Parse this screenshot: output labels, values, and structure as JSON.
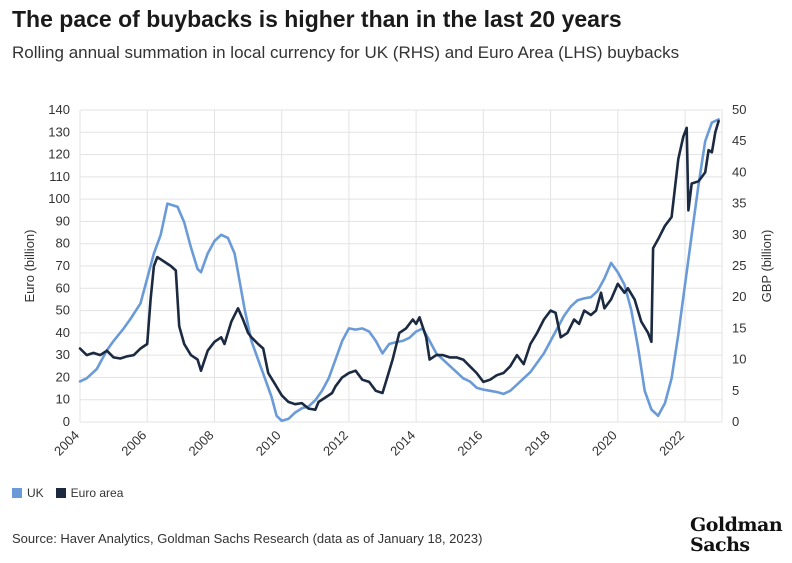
{
  "title": "The pace of buybacks is higher than in the last 20 years",
  "subtitle": "Rolling annual summation in local currency for UK (RHS) and Euro Area (LHS) buybacks",
  "source": "Source: Haver Analytics, Goldman Sachs Research (data as of January 18, 2023)",
  "logo": {
    "line1": "Goldman",
    "line2": "Sachs"
  },
  "legend": [
    {
      "label": "UK",
      "color": "#6a9bd8"
    },
    {
      "label": "Euro area",
      "color": "#1b2a41"
    }
  ],
  "chart_data": {
    "type": "line",
    "title": "The pace of buybacks is higher than in the last 20 years",
    "subtitle": "Rolling annual summation in local currency for UK (RHS) and Euro Area (LHS) buybacks",
    "ylabel_left": "Euro (billion)",
    "ylabel_right": "GBP (billion)",
    "ylim_left": [
      0,
      140
    ],
    "ylim_right": [
      0,
      50
    ],
    "xlim": [
      2004,
      2023.1
    ],
    "x_ticks": [
      "2004",
      "2006",
      "2008",
      "2010",
      "2012",
      "2014",
      "2016",
      "2018",
      "2020",
      "2022"
    ],
    "y_ticks_left": [
      "0",
      "10",
      "20",
      "30",
      "40",
      "50",
      "60",
      "70",
      "80",
      "90",
      "100",
      "110",
      "120",
      "130",
      "140"
    ],
    "y_ticks_right": [
      "0",
      "5",
      "10",
      "15",
      "20",
      "25",
      "30",
      "35",
      "40",
      "45",
      "50"
    ],
    "grid": true,
    "legend_position": "bottom-left",
    "colors": {
      "uk": "#6a9bd8",
      "euro": "#1b2a41"
    },
    "series": [
      {
        "name": "UK",
        "axis": "right",
        "points": [
          [
            2004,
            6.5
          ],
          [
            2004.2,
            7
          ],
          [
            2004.5,
            8.5
          ],
          [
            2004.8,
            11.5
          ],
          [
            2005,
            13
          ],
          [
            2005.3,
            15
          ],
          [
            2005.5,
            16.5
          ],
          [
            2005.8,
            19
          ],
          [
            2006,
            23
          ],
          [
            2006.2,
            27
          ],
          [
            2006.4,
            30
          ],
          [
            2006.6,
            35
          ],
          [
            2006.9,
            34.5
          ],
          [
            2007.1,
            32
          ],
          [
            2007.3,
            28
          ],
          [
            2007.5,
            24.5
          ],
          [
            2007.6,
            24
          ],
          [
            2007.8,
            27
          ],
          [
            2008,
            29
          ],
          [
            2008.2,
            30
          ],
          [
            2008.4,
            29.5
          ],
          [
            2008.6,
            27
          ],
          [
            2008.7,
            24
          ],
          [
            2008.9,
            18
          ],
          [
            2009.1,
            13
          ],
          [
            2009.3,
            10
          ],
          [
            2009.5,
            7
          ],
          [
            2009.7,
            4
          ],
          [
            2009.85,
            1
          ],
          [
            2010,
            0.2
          ],
          [
            2010.2,
            0.5
          ],
          [
            2010.4,
            1.5
          ],
          [
            2010.6,
            2.2
          ],
          [
            2010.8,
            2.5
          ],
          [
            2011,
            3.5
          ],
          [
            2011.2,
            5
          ],
          [
            2011.4,
            7
          ],
          [
            2011.6,
            10
          ],
          [
            2011.8,
            13
          ],
          [
            2012,
            15
          ],
          [
            2012.2,
            14.8
          ],
          [
            2012.4,
            15
          ],
          [
            2012.6,
            14.5
          ],
          [
            2012.8,
            13
          ],
          [
            2013,
            11
          ],
          [
            2013.2,
            12.5
          ],
          [
            2013.4,
            12.8
          ],
          [
            2013.6,
            13
          ],
          [
            2013.8,
            13.5
          ],
          [
            2014,
            14.5
          ],
          [
            2014.2,
            15
          ],
          [
            2014.4,
            13
          ],
          [
            2014.6,
            11
          ],
          [
            2014.8,
            10
          ],
          [
            2015,
            9
          ],
          [
            2015.2,
            8
          ],
          [
            2015.4,
            7
          ],
          [
            2015.6,
            6.5
          ],
          [
            2015.8,
            5.5
          ],
          [
            2016,
            5.2
          ],
          [
            2016.2,
            5
          ],
          [
            2016.4,
            4.8
          ],
          [
            2016.6,
            4.5
          ],
          [
            2016.8,
            5
          ],
          [
            2017,
            6
          ],
          [
            2017.2,
            7
          ],
          [
            2017.4,
            8
          ],
          [
            2017.6,
            9.5
          ],
          [
            2017.8,
            11
          ],
          [
            2018,
            13
          ],
          [
            2018.2,
            15
          ],
          [
            2018.4,
            17
          ],
          [
            2018.6,
            18.5
          ],
          [
            2018.8,
            19.5
          ],
          [
            2019,
            19.8
          ],
          [
            2019.2,
            20
          ],
          [
            2019.4,
            21
          ],
          [
            2019.6,
            23
          ],
          [
            2019.8,
            25.5
          ],
          [
            2020,
            24
          ],
          [
            2020.2,
            22
          ],
          [
            2020.4,
            18
          ],
          [
            2020.6,
            12
          ],
          [
            2020.8,
            5
          ],
          [
            2021,
            2
          ],
          [
            2021.2,
            1
          ],
          [
            2021.4,
            3
          ],
          [
            2021.6,
            7
          ],
          [
            2021.8,
            14
          ],
          [
            2022,
            22
          ],
          [
            2022.2,
            30
          ],
          [
            2022.4,
            38
          ],
          [
            2022.6,
            45
          ],
          [
            2022.8,
            48
          ],
          [
            2023,
            48.5
          ]
        ]
      },
      {
        "name": "Euro area",
        "axis": "left",
        "points": [
          [
            2004,
            33
          ],
          [
            2004.2,
            30
          ],
          [
            2004.4,
            31
          ],
          [
            2004.6,
            30
          ],
          [
            2004.8,
            32
          ],
          [
            2005,
            29
          ],
          [
            2005.2,
            28.5
          ],
          [
            2005.4,
            29.5
          ],
          [
            2005.6,
            30
          ],
          [
            2005.8,
            33
          ],
          [
            2006,
            35
          ],
          [
            2006.1,
            55
          ],
          [
            2006.2,
            70
          ],
          [
            2006.3,
            74
          ],
          [
            2006.5,
            72
          ],
          [
            2006.7,
            70
          ],
          [
            2006.85,
            68
          ],
          [
            2006.95,
            43
          ],
          [
            2007.1,
            35
          ],
          [
            2007.3,
            30
          ],
          [
            2007.5,
            28
          ],
          [
            2007.6,
            23
          ],
          [
            2007.8,
            32
          ],
          [
            2008,
            36
          ],
          [
            2008.2,
            38
          ],
          [
            2008.3,
            35
          ],
          [
            2008.5,
            45
          ],
          [
            2008.7,
            51
          ],
          [
            2008.85,
            46
          ],
          [
            2009,
            40
          ],
          [
            2009.1,
            38
          ],
          [
            2009.3,
            35
          ],
          [
            2009.45,
            33
          ],
          [
            2009.6,
            22
          ],
          [
            2009.8,
            17
          ],
          [
            2010,
            12
          ],
          [
            2010.2,
            9
          ],
          [
            2010.4,
            8
          ],
          [
            2010.6,
            8.5
          ],
          [
            2010.8,
            6
          ],
          [
            2011,
            5.5
          ],
          [
            2011.1,
            9
          ],
          [
            2011.3,
            11
          ],
          [
            2011.5,
            13
          ],
          [
            2011.6,
            16
          ],
          [
            2011.8,
            20
          ],
          [
            2012,
            22
          ],
          [
            2012.2,
            23
          ],
          [
            2012.4,
            19
          ],
          [
            2012.6,
            18
          ],
          [
            2012.8,
            14
          ],
          [
            2013,
            13
          ],
          [
            2013.1,
            18
          ],
          [
            2013.3,
            28
          ],
          [
            2013.5,
            40
          ],
          [
            2013.7,
            42
          ],
          [
            2013.9,
            46
          ],
          [
            2014,
            44
          ],
          [
            2014.1,
            47
          ],
          [
            2014.3,
            38
          ],
          [
            2014.4,
            28
          ],
          [
            2014.6,
            30
          ],
          [
            2014.8,
            30
          ],
          [
            2015,
            29
          ],
          [
            2015.2,
            29
          ],
          [
            2015.4,
            28
          ],
          [
            2015.6,
            25
          ],
          [
            2015.8,
            22
          ],
          [
            2016,
            18
          ],
          [
            2016.2,
            19
          ],
          [
            2016.4,
            21
          ],
          [
            2016.6,
            22
          ],
          [
            2016.8,
            25
          ],
          [
            2017,
            30
          ],
          [
            2017.2,
            26
          ],
          [
            2017.4,
            35
          ],
          [
            2017.6,
            40
          ],
          [
            2017.8,
            46
          ],
          [
            2018,
            50
          ],
          [
            2018.15,
            49
          ],
          [
            2018.3,
            38
          ],
          [
            2018.5,
            40
          ],
          [
            2018.7,
            46
          ],
          [
            2018.85,
            44
          ],
          [
            2019,
            50
          ],
          [
            2019.2,
            48
          ],
          [
            2019.35,
            50
          ],
          [
            2019.5,
            58
          ],
          [
            2019.6,
            51
          ],
          [
            2019.8,
            55
          ],
          [
            2020,
            62
          ],
          [
            2020.2,
            58
          ],
          [
            2020.3,
            60
          ],
          [
            2020.5,
            55
          ],
          [
            2020.7,
            45
          ],
          [
            2020.9,
            40
          ],
          [
            2021,
            36
          ],
          [
            2021.05,
            78
          ],
          [
            2021.2,
            82
          ],
          [
            2021.4,
            88
          ],
          [
            2021.6,
            92
          ],
          [
            2021.8,
            118
          ],
          [
            2021.95,
            128
          ],
          [
            2022.05,
            132
          ],
          [
            2022.1,
            95
          ],
          [
            2022.2,
            107
          ],
          [
            2022.4,
            108
          ],
          [
            2022.6,
            112
          ],
          [
            2022.7,
            122
          ],
          [
            2022.8,
            121
          ],
          [
            2022.9,
            130
          ],
          [
            2023,
            135
          ]
        ]
      }
    ]
  }
}
